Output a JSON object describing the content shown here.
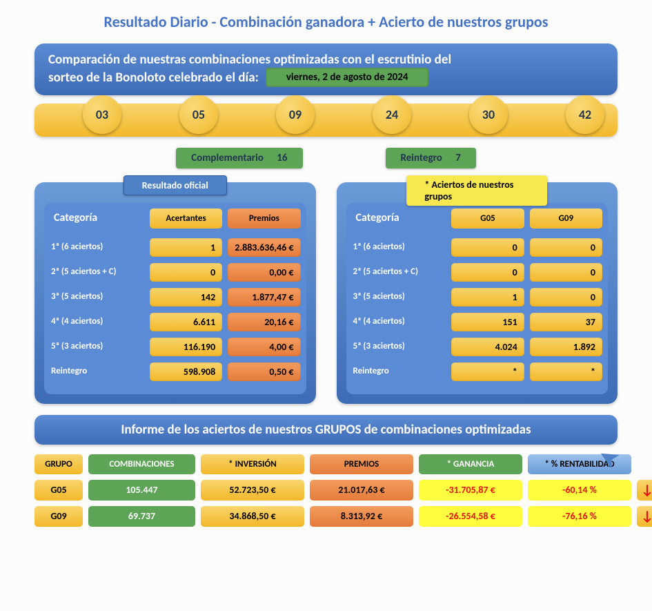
{
  "title": "Resultado Diario - Combinación ganadora + Acierto de nuestros grupos",
  "compare": {
    "text1": "Comparación de nuestras combinaciones optimizadas con el escrutinio del",
    "text2": "sorteo de la Bonoloto celebrado el día:",
    "date": "viernes, 2 de agosto de 2024"
  },
  "balls": [
    "03",
    "05",
    "09",
    "24",
    "30",
    "42"
  ],
  "complementario": {
    "label": "Complementario",
    "value": "16"
  },
  "reintegro": {
    "label": "Reintegro",
    "value": "7"
  },
  "official": {
    "tab": "Resultado oficial",
    "head_cat": "Categoría",
    "head_c1": "Acertantes",
    "head_c2": "Premios",
    "rows": [
      {
        "cat": "1ª  (6 aciertos)",
        "c1": "1",
        "c2": "2.883.636,46 €"
      },
      {
        "cat": "2ª  (5 aciertos + C)",
        "c1": "0",
        "c2": "0,00 €"
      },
      {
        "cat": "3ª  (5 aciertos)",
        "c1": "142",
        "c2": "1.877,47 €"
      },
      {
        "cat": "4ª  (4 aciertos)",
        "c1": "6.611",
        "c2": "20,16 €"
      },
      {
        "cat": "5ª  (3 aciertos)",
        "c1": "116.190",
        "c2": "4,00 €"
      },
      {
        "cat": "Reintegro",
        "c1": "598.908",
        "c2": "0,50 €"
      }
    ]
  },
  "groups": {
    "tab": "* Aciertos de nuestros grupos",
    "head_cat": "Categoría",
    "head_c1": "G05",
    "head_c2": "G09",
    "rows": [
      {
        "cat": "1ª  (6 aciertos)",
        "c1": "0",
        "c2": "0"
      },
      {
        "cat": "2ª  (5 aciertos + C)",
        "c1": "0",
        "c2": "0"
      },
      {
        "cat": "3ª  (5 aciertos)",
        "c1": "1",
        "c2": "0"
      },
      {
        "cat": "4ª  (4 aciertos)",
        "c1": "151",
        "c2": "37"
      },
      {
        "cat": "5ª  (3 aciertos)",
        "c1": "4.024",
        "c2": "1.892"
      },
      {
        "cat": "Reintegro",
        "c1": "*",
        "c2": "*"
      }
    ]
  },
  "report": {
    "title": "Informe de los aciertos de nuestros GRUPOS de combinaciones optimizadas",
    "headers": {
      "grupo": "GRUPO",
      "comb": "COMBINACIONES",
      "inv": "* INVERSIÓN",
      "prem": "PREMIOS",
      "gan": "* GANANCIA",
      "rent": "* % RENTABILIDAD"
    },
    "rows": [
      {
        "grupo": "G05",
        "comb": "105.447",
        "inv": "52.723,50 €",
        "prem": "21.017,63 €",
        "gan": "-31.705,87 €",
        "rent": "-60,14   %"
      },
      {
        "grupo": "G09",
        "comb": "69.737",
        "inv": "34.868,50 €",
        "prem": "8.313,92 €",
        "gan": "-26.554,58 €",
        "rent": "-76,16   %"
      }
    ]
  }
}
